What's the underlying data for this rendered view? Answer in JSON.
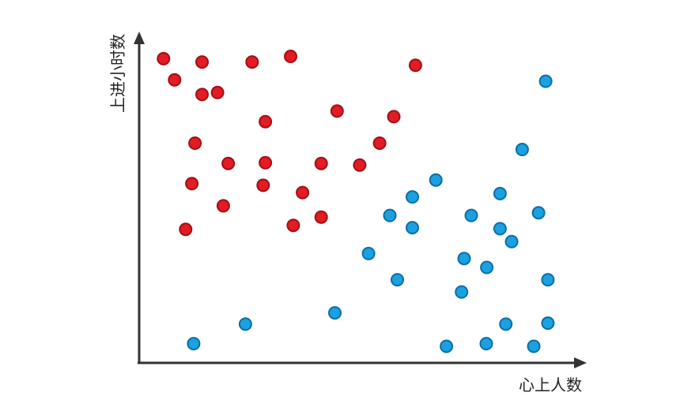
{
  "chart_data": {
    "type": "scatter",
    "title": "",
    "xlabel": "心上人数",
    "ylabel": "上进小时数",
    "xlim": [
      0,
      100
    ],
    "ylim": [
      0,
      100
    ],
    "grid": false,
    "legend": "none",
    "series": [
      {
        "color": "#e31b23",
        "stroke": "#a10f16",
        "points": [
          {
            "x": 5.5,
            "y": 91.8
          },
          {
            "x": 8.0,
            "y": 85.4
          },
          {
            "x": 14.2,
            "y": 90.8
          },
          {
            "x": 14.2,
            "y": 81.0
          },
          {
            "x": 17.7,
            "y": 81.6
          },
          {
            "x": 25.5,
            "y": 90.8
          },
          {
            "x": 34.2,
            "y": 92.5
          },
          {
            "x": 62.4,
            "y": 89.8
          },
          {
            "x": 44.7,
            "y": 76.0
          },
          {
            "x": 57.5,
            "y": 74.3
          },
          {
            "x": 28.5,
            "y": 72.8
          },
          {
            "x": 12.6,
            "y": 66.3
          },
          {
            "x": 54.3,
            "y": 66.3
          },
          {
            "x": 20.1,
            "y": 60.2
          },
          {
            "x": 28.5,
            "y": 60.4
          },
          {
            "x": 41.1,
            "y": 60.2
          },
          {
            "x": 49.8,
            "y": 59.7
          },
          {
            "x": 11.9,
            "y": 54.1
          },
          {
            "x": 28.0,
            "y": 53.6
          },
          {
            "x": 36.9,
            "y": 51.4
          },
          {
            "x": 19.0,
            "y": 47.4
          },
          {
            "x": 10.5,
            "y": 40.3
          },
          {
            "x": 34.8,
            "y": 41.5
          },
          {
            "x": 41.1,
            "y": 44.0
          }
        ]
      },
      {
        "color": "#1ba1e2",
        "stroke": "#0b6ea3",
        "points": [
          {
            "x": 91.8,
            "y": 85.0
          },
          {
            "x": 86.5,
            "y": 64.4
          },
          {
            "x": 67.0,
            "y": 55.2
          },
          {
            "x": 81.5,
            "y": 51.1
          },
          {
            "x": 61.7,
            "y": 50.1
          },
          {
            "x": 90.2,
            "y": 45.3
          },
          {
            "x": 56.6,
            "y": 44.5
          },
          {
            "x": 75.0,
            "y": 44.5
          },
          {
            "x": 61.7,
            "y": 40.8
          },
          {
            "x": 81.5,
            "y": 40.5
          },
          {
            "x": 84.1,
            "y": 36.6
          },
          {
            "x": 51.8,
            "y": 33.0
          },
          {
            "x": 73.4,
            "y": 31.5
          },
          {
            "x": 78.5,
            "y": 28.8
          },
          {
            "x": 58.3,
            "y": 25.1
          },
          {
            "x": 92.3,
            "y": 25.1
          },
          {
            "x": 72.8,
            "y": 21.4
          },
          {
            "x": 44.2,
            "y": 15.1
          },
          {
            "x": 24.0,
            "y": 11.7
          },
          {
            "x": 82.8,
            "y": 11.7
          },
          {
            "x": 92.3,
            "y": 12.0
          },
          {
            "x": 12.3,
            "y": 5.8
          },
          {
            "x": 69.4,
            "y": 5.0
          },
          {
            "x": 78.4,
            "y": 5.8
          },
          {
            "x": 89.1,
            "y": 5.0
          }
        ]
      }
    ]
  }
}
